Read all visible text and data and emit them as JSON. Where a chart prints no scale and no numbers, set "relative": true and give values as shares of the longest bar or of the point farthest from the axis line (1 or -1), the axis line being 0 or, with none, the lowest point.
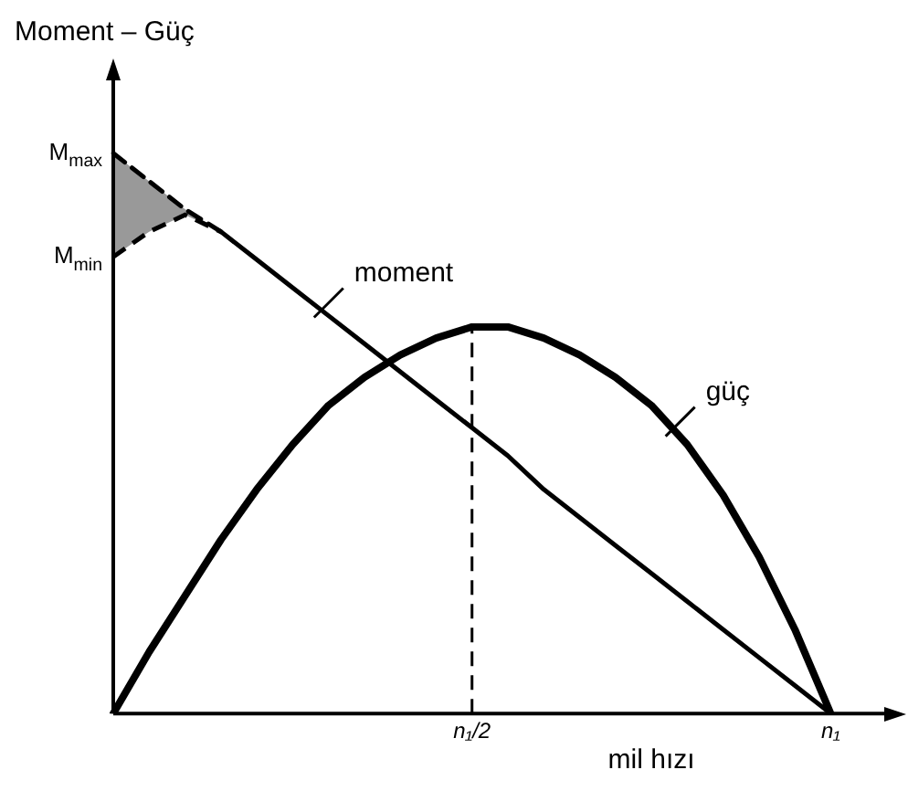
{
  "chart_data": {
    "type": "line",
    "relative": true,
    "ylabel": "Moment – Güç",
    "xlabel": "mil hızı",
    "categories": [
      null,
      null,
      null,
      null,
      null,
      null,
      null,
      null,
      null,
      null,
      "n₁/2",
      null,
      null,
      null,
      null,
      null,
      null,
      null,
      null,
      null,
      "n₁",
      null,
      null
    ],
    "legend": false,
    "grid": false,
    "marker": "none",
    "annotations": [
      "M$_{max}$",
      "M$_{min}$"
    ],
    "ref_lines": [
      {
        "axis": "x",
        "value": "n₁/2",
        "line_style": "dashed"
      }
    ],
    "series": [
      {
        "color": "#000000",
        "line_style": "dashed",
        "values": [
          1,
          0.95,
          0.9,
          0.86,
          null,
          null,
          null,
          null,
          null,
          null,
          null,
          null,
          null,
          null,
          null,
          null,
          null,
          null,
          null,
          null,
          null,
          null,
          null
        ],
        "lower": [
          0.815,
          0.86,
          0.89,
          0.86,
          null,
          null,
          null,
          null,
          null,
          null,
          null,
          null,
          null,
          null,
          null,
          null,
          null,
          null,
          null,
          null,
          null,
          null,
          null
        ],
        "upper": [
          1,
          0.95,
          0.9,
          0.86,
          null,
          null,
          null,
          null,
          null,
          null,
          null,
          null,
          null,
          null,
          null,
          null,
          null,
          null,
          null,
          null,
          null,
          null,
          null
        ]
      },
      {
        "name": "moment",
        "color": "#000000",
        "values": [
          null,
          null,
          null,
          0.86,
          0.81,
          0.76,
          0.71,
          0.66,
          0.61,
          0.56,
          0.51,
          0.46,
          0.4,
          0.35,
          0.3,
          0.25,
          0.2,
          0.15,
          0.1,
          0.05,
          0,
          null,
          null
        ]
      },
      {
        "name": "güç",
        "color": "#000000",
        "values": [
          0,
          0.11,
          0.21,
          0.31,
          0.4,
          0.48,
          0.55,
          0.6,
          0.64,
          0.67,
          0.69,
          0.69,
          0.67,
          0.64,
          0.6,
          0.55,
          0.48,
          0.39,
          0.28,
          0.15,
          0,
          null,
          null
        ]
      }
    ]
  }
}
